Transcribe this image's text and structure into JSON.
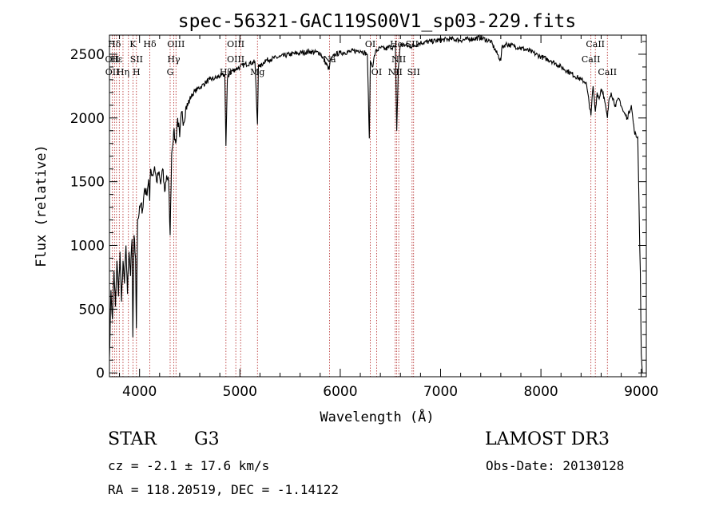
{
  "chart_data": {
    "type": "line",
    "title": "spec-56321-GAC119S00V1_sp03-229.fits",
    "xlabel": "Wavelength (Å)",
    "ylabel": "Flux (relative)",
    "xlim": [
      3700,
      9050
    ],
    "ylim": [
      -30,
      2650
    ],
    "xticks": [
      4000,
      5000,
      6000,
      7000,
      8000,
      9000
    ],
    "yticks": [
      0,
      500,
      1000,
      1500,
      2000,
      2500
    ],
    "grid": false,
    "series": [
      {
        "x": [
          3700,
          3715,
          3730,
          3745,
          3760,
          3775,
          3790,
          3805,
          3820,
          3835,
          3850,
          3865,
          3880,
          3895,
          3910,
          3925,
          3933,
          3945,
          3960,
          3968,
          3980,
          3995,
          4010,
          4030,
          4050,
          4070,
          4090,
          4101,
          4110,
          4130,
          4150,
          4170,
          4190,
          4210,
          4230,
          4250,
          4270,
          4290,
          4305,
          4320,
          4340,
          4360,
          4380,
          4400,
          4420,
          4440,
          4460,
          4480,
          4500,
          4540,
          4580,
          4620,
          4660,
          4700,
          4750,
          4800,
          4850,
          4861,
          4875,
          4900,
          4950,
          5000,
          5050,
          5100,
          5150,
          5175,
          5185,
          5200,
          5250,
          5300,
          5400,
          5500,
          5600,
          5700,
          5800,
          5890,
          5900,
          5950,
          6000,
          6100,
          6200,
          6270,
          6290,
          6300,
          6320,
          6350,
          6400,
          6450,
          6500,
          6550,
          6563,
          6580,
          6600,
          6650,
          6700,
          6800,
          6900,
          7000,
          7100,
          7200,
          7300,
          7400,
          7500,
          7600,
          7610,
          7650,
          7700,
          7800,
          7900,
          8000,
          8100,
          8200,
          8300,
          8400,
          8450,
          8498,
          8520,
          8542,
          8560,
          8580,
          8600,
          8620,
          8662,
          8680,
          8700,
          8740,
          8780,
          8820,
          8860,
          8900,
          8930,
          8950,
          8965,
          8980,
          8990,
          9000,
          9010
        ],
        "values": [
          120,
          650,
          420,
          800,
          520,
          880,
          600,
          950,
          560,
          880,
          700,
          1000,
          620,
          950,
          760,
          1050,
          280,
          1080,
          900,
          350,
          1200,
          1250,
          1320,
          1280,
          1450,
          1400,
          1520,
          1350,
          1600,
          1550,
          1620,
          1500,
          1570,
          1480,
          1600,
          1420,
          1550,
          1500,
          1080,
          1720,
          1900,
          1800,
          2000,
          1850,
          2050,
          1960,
          2080,
          2100,
          2150,
          2200,
          2230,
          2250,
          2280,
          2300,
          2310,
          2330,
          2340,
          1780,
          2300,
          2360,
          2380,
          2400,
          2420,
          2430,
          2440,
          1950,
          2420,
          2400,
          2450,
          2460,
          2480,
          2500,
          2510,
          2520,
          2510,
          2380,
          2450,
          2500,
          2510,
          2520,
          2530,
          2500,
          1840,
          2450,
          2400,
          2520,
          2550,
          2540,
          2560,
          2550,
          1900,
          2400,
          2580,
          2570,
          2560,
          2590,
          2600,
          2610,
          2620,
          2610,
          2620,
          2630,
          2600,
          2450,
          2550,
          2580,
          2570,
          2550,
          2520,
          2480,
          2450,
          2400,
          2350,
          2300,
          2280,
          2020,
          2250,
          2050,
          2200,
          2150,
          2230,
          2200,
          2000,
          2150,
          2200,
          2100,
          2150,
          2050,
          2000,
          2100,
          1900,
          1850,
          1850,
          1200,
          800,
          150,
          0
        ]
      }
    ],
    "lines": [
      {
        "label": "Hδ",
        "x": 3750,
        "row": 0
      },
      {
        "label": "OII",
        "x": 3727,
        "row": 1
      },
      {
        "label": "OII",
        "x": 3729,
        "row": 2
      },
      {
        "label": "Hε",
        "x": 3770,
        "row": 1
      },
      {
        "label": "Hη",
        "x": 3835,
        "row": 2
      },
      {
        "label": "K",
        "x": 3934,
        "row": 0
      },
      {
        "label": "SII",
        "x": 3970,
        "row": 1
      },
      {
        "label": "H",
        "x": 3969,
        "row": 2
      },
      {
        "label": "Hδ",
        "x": 4102,
        "row": 0
      },
      {
        "label": "OIII",
        "x": 4363,
        "row": 0
      },
      {
        "label": "Hγ",
        "x": 4341,
        "row": 1
      },
      {
        "label": "G",
        "x": 4305,
        "row": 2
      },
      {
        "label": "OIII",
        "x": 4959,
        "row": 0
      },
      {
        "label": "OIII",
        "x": 4959,
        "row": 1
      },
      {
        "label": "Hβ",
        "x": 4861,
        "row": 2
      },
      {
        "label": "Mg",
        "x": 5175,
        "row": 2
      },
      {
        "label": "Na",
        "x": 5893,
        "row": 1
      },
      {
        "label": "OI",
        "x": 6300,
        "row": 0
      },
      {
        "label": "OI",
        "x": 6363,
        "row": 2
      },
      {
        "label": "Hα",
        "x": 6563,
        "row": 0
      },
      {
        "label": "SII",
        "x": 6716,
        "row": 0
      },
      {
        "label": "NII",
        "x": 6583,
        "row": 1
      },
      {
        "label": "NII",
        "x": 6548,
        "row": 2
      },
      {
        "label": "SII",
        "x": 6731,
        "row": 2
      },
      {
        "label": "CaII",
        "x": 8542,
        "row": 0
      },
      {
        "label": "CaII",
        "x": 8498,
        "row": 1
      },
      {
        "label": "CaII",
        "x": 8662,
        "row": 2
      }
    ],
    "marker_x": [
      3727,
      3750,
      3770,
      3798,
      3835,
      3889,
      3934,
      3969,
      4102,
      4305,
      4341,
      4363,
      4861,
      4959,
      5007,
      5175,
      5893,
      6300,
      6363,
      6548,
      6563,
      6583,
      6716,
      6731,
      8498,
      8542,
      8662
    ],
    "colors": {
      "spectrum": "#000000",
      "markers": "#b22222"
    }
  },
  "info": {
    "object_class": "STAR",
    "subclass": "G3",
    "survey": "LAMOST DR3",
    "redshift": "cz = -2.1 ± 17.6 km/s",
    "obs_date": "Obs-Date: 20130128",
    "coords": "RA = 118.20519, DEC =  -1.14122"
  }
}
